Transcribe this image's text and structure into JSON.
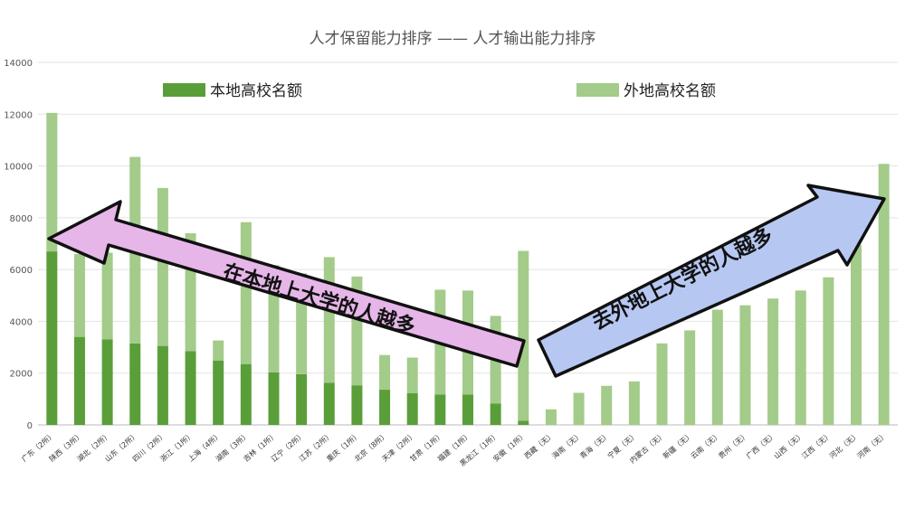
{
  "colors": {
    "local": "#5a9e3a",
    "other": "#a3cb8a",
    "grid": "#e2e2e2",
    "left_arrow": "#e6b6e8",
    "right_arrow": "#b6c8f2"
  },
  "chart_data": {
    "type": "bar",
    "stacked": true,
    "title": "人才保留能力排序 —— 人才输出能力排序",
    "xlabel": "",
    "ylabel": "",
    "ylim": [
      0,
      14000
    ],
    "yticks": [
      "0",
      "2000",
      "4000",
      "6000",
      "8000",
      "10000",
      "12000",
      "14000"
    ],
    "grid": true,
    "legend_position": "top",
    "categories": [
      "广东（2所）",
      "陕西（3所）",
      "湖北（2所）",
      "山东（2所）",
      "四川（2所）",
      "浙江（1所）",
      "上海（4所）",
      "湖南（3所）",
      "吉林（1所）",
      "辽宁（2所）",
      "江苏（2所）",
      "重庆（1所）",
      "北京（8所）",
      "天津（2所）",
      "甘肃（1所）",
      "福建（1所）",
      "黑龙江（1所）",
      "安徽（1所）",
      "西藏（无）",
      "海南（无）",
      "青海（无）",
      "宁夏（无）",
      "内蒙古（无）",
      "新疆（无）",
      "云南（无）",
      "贵州（无）",
      "广西（无）",
      "山西（无）",
      "江西（无）",
      "河北（无）",
      "河南（无）"
    ],
    "series": [
      {
        "name": "本地高校名额",
        "values": [
          6700,
          3400,
          3300,
          3150,
          3050,
          2850,
          2480,
          2350,
          2030,
          1960,
          1630,
          1530,
          1360,
          1230,
          1170,
          1170,
          830,
          160,
          0,
          0,
          0,
          0,
          0,
          0,
          0,
          0,
          0,
          0,
          0,
          0,
          0
        ]
      },
      {
        "name": "外地高校名额",
        "values": [
          5350,
          3200,
          3350,
          7200,
          6100,
          4550,
          780,
          5480,
          4140,
          3890,
          4850,
          4200,
          1340,
          1370,
          4050,
          4020,
          3380,
          6560,
          600,
          1240,
          1510,
          1680,
          3150,
          3650,
          4450,
          4620,
          4880,
          5190,
          5700,
          6950,
          10080
        ]
      }
    ],
    "annotations": [
      "在本地上大学的人越多",
      "去外地上大学的人越多"
    ]
  }
}
